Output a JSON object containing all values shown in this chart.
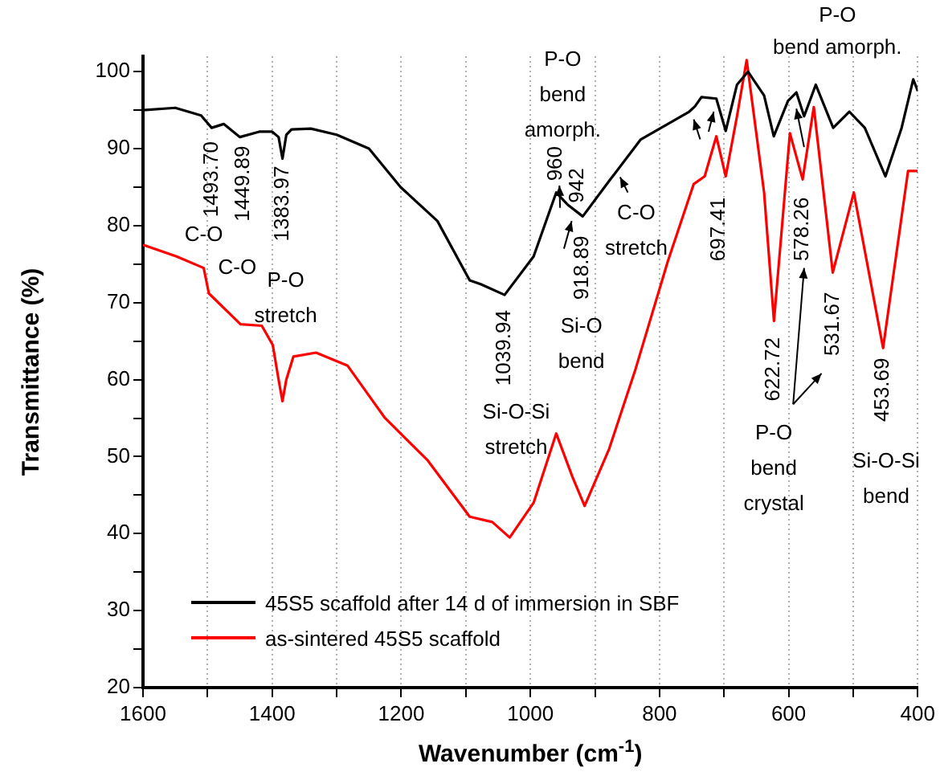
{
  "chart_data": {
    "type": "line",
    "xlabel": "Wavenumber (cm$^{-1}$)",
    "ylabel": "Transmittance (%)",
    "xlim": [
      1600,
      400
    ],
    "xticks": [
      1600,
      {
        "value": 1500,
        "label": null
      },
      1400,
      {
        "value": 1300,
        "label": null
      },
      1200,
      {
        "value": 1100,
        "label": null
      },
      1000,
      {
        "value": 900,
        "label": null
      },
      800,
      {
        "value": 700,
        "label": null
      },
      600,
      {
        "value": 500,
        "label": null
      },
      400
    ],
    "ylim": [
      20,
      102
    ],
    "yticks": [
      20,
      {
        "value": 25,
        "label": null
      },
      30,
      {
        "value": 35,
        "label": null
      },
      40,
      {
        "value": 45,
        "label": null
      },
      50,
      {
        "value": 55,
        "label": null
      },
      60,
      {
        "value": 65,
        "label": null
      },
      70,
      {
        "value": 75,
        "label": null
      },
      80,
      {
        "value": 85,
        "label": null
      },
      90,
      {
        "value": 95,
        "label": null
      },
      100
    ],
    "grid": "x",
    "legend": "bottom left",
    "marker": "none",
    "line_style": "solid",
    "series": [
      {
        "name": "45S5 scaffold after 14 d of immersion in SBF",
        "color": "#000000",
        "x": [
          1600,
          1550,
          1510,
          1493.7,
          1475,
          1449.89,
          1420,
          1400,
          1390,
          1383.97,
          1378,
          1370,
          1340,
          1300,
          1250,
          1201,
          1144,
          1094,
          1077,
          1039.94,
          995,
          960,
          942,
          918.89,
          878,
          829,
          754,
          745,
          735,
          712,
          697.41,
          680,
          663,
          638,
          623,
          601,
          588,
          576,
          558,
          531,
          506,
          482,
          450,
          425,
          407,
          400
        ],
        "values": [
          95,
          95.3,
          94.3,
          92.7,
          93.2,
          91.5,
          92.2,
          92.2,
          91.5,
          88.7,
          91.8,
          92.5,
          92.6,
          91.8,
          90,
          85,
          80.6,
          72.9,
          72.4,
          71,
          76,
          84.3,
          82.7,
          81.2,
          85.8,
          91.2,
          94.8,
          95.5,
          96.7,
          96.5,
          92.3,
          98.3,
          100,
          96.9,
          91.6,
          96.2,
          97.3,
          94.2,
          98.3,
          92.7,
          94.8,
          92.7,
          86.4,
          92.7,
          99,
          97.5
        ]
      },
      {
        "name": "as-sintered 45S5 scaffold",
        "color": "#ff0000",
        "x": [
          1600,
          1548,
          1506,
          1498,
          1449,
          1416,
          1399,
          1390,
          1384,
          1378,
          1367,
          1332,
          1283,
          1226,
          1159,
          1094,
          1059,
          1032,
          995,
          960,
          935,
          916,
          878,
          837,
          787,
          747,
          730,
          712,
          697.41,
          680,
          665,
          638,
          622.72,
          598,
          578.26,
          561,
          531.67,
          499,
          453.69,
          415,
          400
        ],
        "values": [
          77.5,
          76,
          74.5,
          71.2,
          67.2,
          67,
          64.5,
          60,
          57.2,
          60,
          63,
          63.5,
          61.8,
          55.1,
          49.5,
          42.2,
          41.5,
          39.5,
          44,
          53,
          47.4,
          43.6,
          51,
          61.4,
          75.4,
          85.4,
          86.4,
          91.6,
          86.4,
          94.2,
          101.5,
          84.3,
          67.6,
          92,
          86,
          95.4,
          73.9,
          84.3,
          64.1,
          87.1,
          87.1
        ]
      }
    ],
    "annotations": [
      {
        "text": "1493.70",
        "x": 1493.7,
        "y": 92.7
      },
      {
        "text": "1449.89",
        "x": 1449.89,
        "y": 91.5
      },
      {
        "text": "1383.97",
        "x": 1383.97,
        "y": 88.7
      },
      {
        "text": "1039.94",
        "x": 1039.94,
        "y": 71
      },
      {
        "text": "960",
        "x": 960,
        "y": 84.3
      },
      {
        "text": "942",
        "x": 942,
        "y": 82.7
      },
      {
        "text": "918.89",
        "x": 918.89,
        "y": 81.2
      },
      {
        "text": "697.41",
        "x": 697.41,
        "y": 86.4
      },
      {
        "text": "622.72",
        "x": 622.72,
        "y": 67.6
      },
      {
        "text": "578.26",
        "x": 578.26,
        "y": 86
      },
      {
        "text": "531.67",
        "x": 531.67,
        "y": 73.9
      },
      {
        "text": "453.69",
        "x": 453.69,
        "y": 64.1
      },
      "C-O",
      "C-O",
      "P-O\nstretch",
      "Si-O-Si\nstretch",
      "P-O\nbend\namorph.",
      "Si-O\nbend",
      "C-O\nstretch",
      "P-O\nbend\ncrystal",
      "Si-O-Si\nbend",
      "P-O\nbend amorph."
    ]
  }
}
